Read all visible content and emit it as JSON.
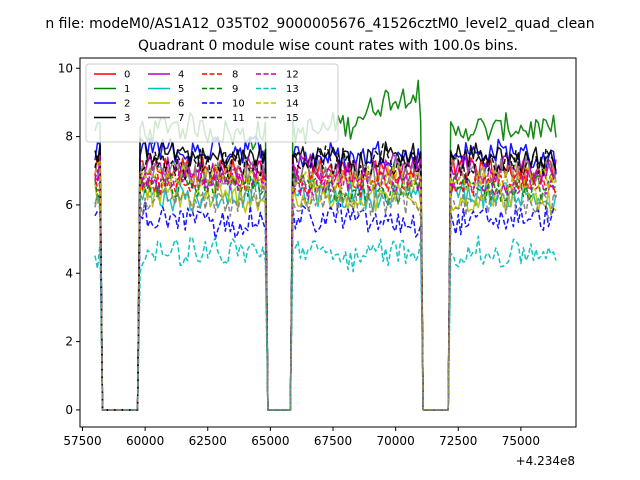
{
  "chart_data": {
    "type": "line",
    "suptitle": "n file: modeM0/AS1A12_035T02_9000005676_41526cztM0_level2_quad_clean",
    "title": "Quadrant 0 module wise count rates with 100.0s bins.",
    "xlabel": "",
    "ylabel": "",
    "x_offset_label": "+4.234e8",
    "xlim": [
      57400,
      77200
    ],
    "ylim": [
      -0.5,
      10.3
    ],
    "xticks": [
      57500,
      60000,
      62500,
      65000,
      67500,
      70000,
      72500,
      75000
    ],
    "xtick_labels": [
      "57500",
      "60000",
      "62500",
      "65000",
      "67500",
      "70000",
      "72500",
      "75000"
    ],
    "yticks": [
      0,
      2,
      4,
      6,
      8,
      10
    ],
    "ytick_labels": [
      "0",
      "2",
      "4",
      "6",
      "8",
      "10"
    ],
    "legend_position": "top-left",
    "segments": [
      {
        "start": 58000,
        "end": 58200
      },
      {
        "start": 59800,
        "end": 64800
      },
      {
        "start": 65900,
        "end": 71000
      },
      {
        "start": 72200,
        "end": 76400
      }
    ],
    "gap_value": 0,
    "bin_seconds": 100,
    "series": [
      {
        "name": "0",
        "color": "#ff0000",
        "dash": "solid",
        "level": 7.0
      },
      {
        "name": "1",
        "color": "#008000",
        "dash": "solid",
        "level": 8.2
      },
      {
        "name": "2",
        "color": "#0000ff",
        "dash": "solid",
        "level": 7.5
      },
      {
        "name": "3",
        "color": "#000000",
        "dash": "solid",
        "level": 7.4
      },
      {
        "name": "4",
        "color": "#bf00bf",
        "dash": "solid",
        "level": 7.0
      },
      {
        "name": "5",
        "color": "#00bfbf",
        "dash": "solid",
        "level": 6.3
      },
      {
        "name": "6",
        "color": "#bfbf00",
        "dash": "solid",
        "level": 6.2
      },
      {
        "name": "7",
        "color": "#7f7f7f",
        "dash": "solid",
        "level": 6.9
      },
      {
        "name": "8",
        "color": "#ff0000",
        "dash": "dashed",
        "level": 6.6
      },
      {
        "name": "9",
        "color": "#008000",
        "dash": "dashed",
        "level": 6.5
      },
      {
        "name": "10",
        "color": "#0000ff",
        "dash": "dashed",
        "level": 5.6
      },
      {
        "name": "11",
        "color": "#000000",
        "dash": "dashed",
        "level": 7.2
      },
      {
        "name": "12",
        "color": "#bf00bf",
        "dash": "dashed",
        "level": 6.7
      },
      {
        "name": "13",
        "color": "#00bfbf",
        "dash": "dashed",
        "level": 4.6
      },
      {
        "name": "14",
        "color": "#bfbf00",
        "dash": "dashed",
        "level": 6.8
      },
      {
        "name": "15",
        "color": "#7f7f7f",
        "dash": "dashed",
        "level": 6.1
      }
    ]
  }
}
